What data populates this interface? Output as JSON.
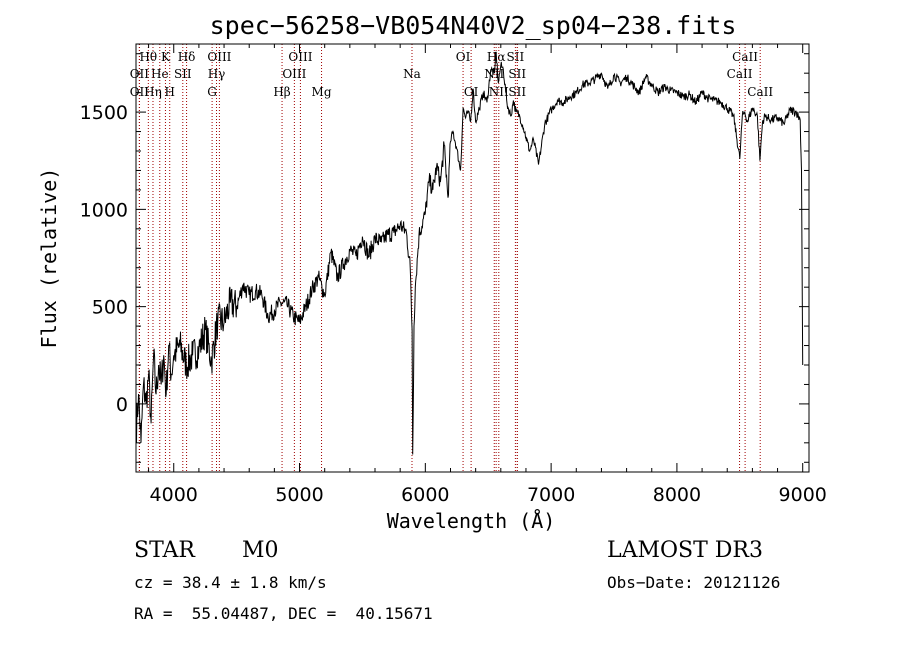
{
  "chart_data": {
    "type": "line",
    "title": "spec−56258−VB054N40V2_sp04−238.fits",
    "xlabel": "Wavelength (Å)",
    "ylabel": "Flux (relative)",
    "xlim": [
      3700,
      9050
    ],
    "ylim": [
      -350,
      1850
    ],
    "grid": false,
    "x_ticks": [
      4000,
      5000,
      6000,
      7000,
      8000,
      9000
    ],
    "y_ticks": [
      0,
      500,
      1000,
      1500
    ],
    "series": [
      {
        "x": [
          3700,
          3720,
          3740,
          3760,
          3780,
          3800,
          3820,
          3840,
          3860,
          3880,
          3900,
          3920,
          3940,
          3960,
          3980,
          4000,
          4050,
          4100,
          4150,
          4200,
          4250,
          4300,
          4350,
          4400,
          4450,
          4500,
          4550,
          4600,
          4650,
          4700,
          4750,
          4800,
          4850,
          4900,
          4950,
          5000,
          5050,
          5100,
          5150,
          5200,
          5250,
          5300,
          5350,
          5400,
          5450,
          5500,
          5550,
          5600,
          5650,
          5700,
          5750,
          5800,
          5850,
          5880,
          5895,
          5900,
          5910,
          5920,
          5950,
          6000,
          6030,
          6060,
          6090,
          6120,
          6150,
          6180,
          6200,
          6220,
          6250,
          6280,
          6300,
          6320,
          6340,
          6360,
          6380,
          6400,
          6430,
          6460,
          6490,
          6520,
          6550,
          6563,
          6580,
          6600,
          6620,
          6650,
          6680,
          6700,
          6720,
          6750,
          6780,
          6800,
          6830,
          6860,
          6900,
          6950,
          7000,
          7050,
          7100,
          7150,
          7200,
          7250,
          7300,
          7350,
          7400,
          7450,
          7500,
          7550,
          7600,
          7650,
          7700,
          7750,
          7800,
          7850,
          7900,
          7950,
          8000,
          8050,
          8100,
          8150,
          8200,
          8250,
          8300,
          8350,
          8400,
          8450,
          8500,
          8520,
          8540,
          8560,
          8600,
          8640,
          8660,
          8680,
          8700,
          8750,
          8800,
          8850,
          8900,
          8950,
          8980,
          8990,
          9000
        ],
        "values": [
          -150,
          50,
          -200,
          100,
          0,
          150,
          -100,
          250,
          50,
          200,
          100,
          250,
          50,
          300,
          150,
          250,
          300,
          200,
          250,
          280,
          380,
          220,
          430,
          420,
          520,
          500,
          610,
          560,
          580,
          560,
          450,
          480,
          520,
          510,
          450,
          420,
          500,
          590,
          650,
          560,
          780,
          650,
          720,
          790,
          760,
          860,
          760,
          850,
          830,
          870,
          880,
          920,
          880,
          700,
          380,
          -260,
          400,
          600,
          870,
          980,
          1150,
          1100,
          1220,
          1140,
          1330,
          1060,
          1350,
          1400,
          1310,
          1200,
          1520,
          1470,
          1500,
          1450,
          1620,
          1450,
          1520,
          1600,
          1550,
          1720,
          1700,
          1810,
          1650,
          1740,
          1720,
          1540,
          1480,
          1560,
          1500,
          1480,
          1420,
          1370,
          1300,
          1360,
          1230,
          1440,
          1510,
          1560,
          1550,
          1580,
          1600,
          1640,
          1650,
          1670,
          1700,
          1620,
          1690,
          1650,
          1680,
          1640,
          1600,
          1680,
          1640,
          1600,
          1630,
          1610,
          1600,
          1580,
          1590,
          1550,
          1600,
          1570,
          1560,
          1550,
          1520,
          1480,
          1260,
          1480,
          1500,
          1450,
          1520,
          1480,
          1250,
          1450,
          1480,
          1460,
          1470,
          1440,
          1510,
          1500,
          1460,
          1200,
          200
        ]
      }
    ],
    "lines": [
      {
        "label": "Hθ",
        "x": 3798,
        "row": 1
      },
      {
        "label": "OII",
        "x": 3727,
        "row": 2
      },
      {
        "label": "OII",
        "x": 3727,
        "row": 3
      },
      {
        "label": "He",
        "x": 3889,
        "row": 2
      },
      {
        "label": "Hη",
        "x": 3835,
        "row": 3
      },
      {
        "label": "K",
        "x": 3934,
        "row": 1
      },
      {
        "label": "H",
        "x": 3968,
        "row": 3
      },
      {
        "label": "SII",
        "x": 4072,
        "row": 2
      },
      {
        "label": "Hδ",
        "x": 4102,
        "row": 1
      },
      {
        "label": "OIII",
        "x": 4363,
        "row": 1
      },
      {
        "label": "Hγ",
        "x": 4340,
        "row": 2
      },
      {
        "label": "G",
        "x": 4305,
        "row": 3
      },
      {
        "label": "Hβ",
        "x": 4861,
        "row": 3
      },
      {
        "label": "OIII",
        "x": 5007,
        "row": 1
      },
      {
        "label": "OIII",
        "x": 4959,
        "row": 2
      },
      {
        "label": "Mg",
        "x": 5175,
        "row": 3
      },
      {
        "label": "Na",
        "x": 5894,
        "row": 2
      },
      {
        "label": "OI",
        "x": 6300,
        "row": 1
      },
      {
        "label": "OI",
        "x": 6364,
        "row": 3
      },
      {
        "label": "Hα",
        "x": 6563,
        "row": 1
      },
      {
        "label": "NII",
        "x": 6548,
        "row": 2
      },
      {
        "label": "NII",
        "x": 6584,
        "row": 3
      },
      {
        "label": "SII",
        "x": 6716,
        "row": 1
      },
      {
        "label": "SII",
        "x": 6731,
        "row": 2
      },
      {
        "label": "SII",
        "x": 6731,
        "row": 3
      },
      {
        "label": "CaII",
        "x": 8542,
        "row": 1
      },
      {
        "label": "CaII",
        "x": 8498,
        "row": 2
      },
      {
        "label": "CaII",
        "x": 8662,
        "row": 3
      }
    ]
  },
  "info": {
    "class": "STAR",
    "subclass": "M0",
    "survey": "LAMOST DR3",
    "cz": "cz = 38.4 ± 1.8 km/s",
    "obs_date": "Obs−Date: 20121126",
    "coords": "RA =  55.04487, DEC =  40.15671"
  },
  "colors": {
    "line_markers": "#a00000",
    "spectrum": "#000000"
  }
}
